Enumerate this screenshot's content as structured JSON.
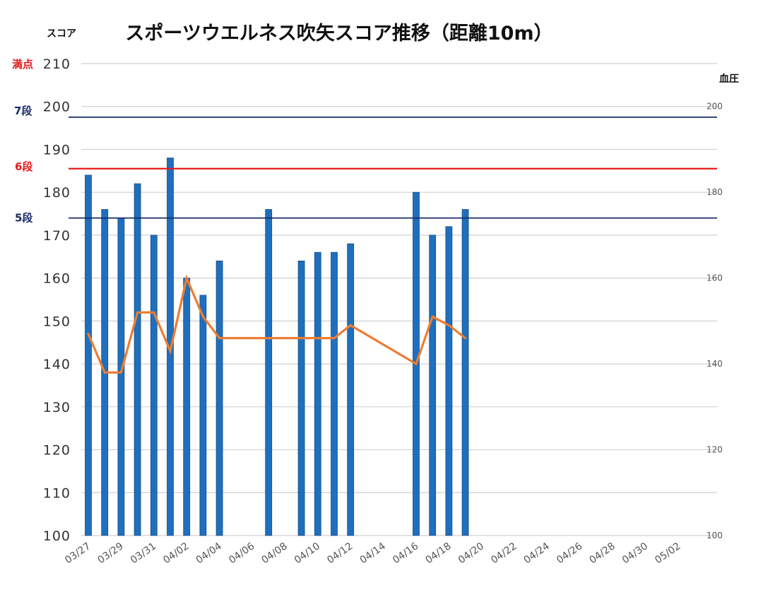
{
  "chart_data": {
    "type": "bar",
    "title": "スポーツウエルネス吹矢スコア推移（距離10m）",
    "ylabel": "スコア",
    "y2label": "血圧",
    "ylim": [
      100,
      210
    ],
    "y2lim": [
      100,
      210
    ],
    "yticks": [
      "100",
      "110",
      "120",
      "130",
      "140",
      "150",
      "160",
      "170",
      "180",
      "190",
      "200",
      "210"
    ],
    "y2ticks": [
      "100",
      "120",
      "140",
      "160",
      "180",
      "200"
    ],
    "xticks": [
      "03/27",
      "03/29",
      "03/31",
      "04/02",
      "04/04",
      "04/06",
      "04/08",
      "04/10",
      "04/12",
      "04/14",
      "04/16",
      "04/18",
      "04/20",
      "04/22",
      "04/24",
      "04/26",
      "04/28",
      "04/30",
      "05/02"
    ],
    "grid": true,
    "colors": {
      "bar": "#1f6fbd",
      "line": "#ed7d31",
      "ref_navy": "#1a2a6c",
      "ref_red": "#e41a1c",
      "grid": "#d0d0d0"
    },
    "reference_lines": [
      {
        "label": "満点",
        "value": 210,
        "color": "#e41a1c"
      },
      {
        "label": "7段",
        "value": 197.5,
        "color": "#1a2a6c"
      },
      {
        "label": "6段",
        "value": 185.5,
        "color": "#e41a1c"
      },
      {
        "label": "5段",
        "value": 174,
        "color": "#1a2a6c"
      }
    ],
    "series": [
      {
        "type": "bar",
        "axis": "left",
        "x": [
          "03/27",
          "03/28",
          "03/29",
          "03/30",
          "03/31",
          "04/01",
          "04/02",
          "04/03",
          "04/04",
          "04/07",
          "04/09",
          "04/10",
          "04/11",
          "04/12",
          "04/16",
          "04/17",
          "04/18",
          "04/19"
        ],
        "values": [
          184,
          176,
          174,
          182,
          170,
          188,
          160,
          156,
          164,
          176,
          164,
          166,
          166,
          168,
          180,
          170,
          172,
          176
        ]
      },
      {
        "type": "line",
        "axis": "right",
        "x": [
          "03/27",
          "03/28",
          "03/29",
          "03/30",
          "03/31",
          "04/01",
          "04/02",
          "04/03",
          "04/04",
          "04/07",
          "04/09",
          "04/10",
          "04/11",
          "04/12",
          "04/16",
          "04/17",
          "04/18",
          "04/19"
        ],
        "values": [
          147,
          138,
          138,
          152,
          152,
          143,
          160,
          151,
          146,
          146,
          146,
          146,
          146,
          149,
          140,
          151,
          149,
          146
        ]
      }
    ]
  }
}
